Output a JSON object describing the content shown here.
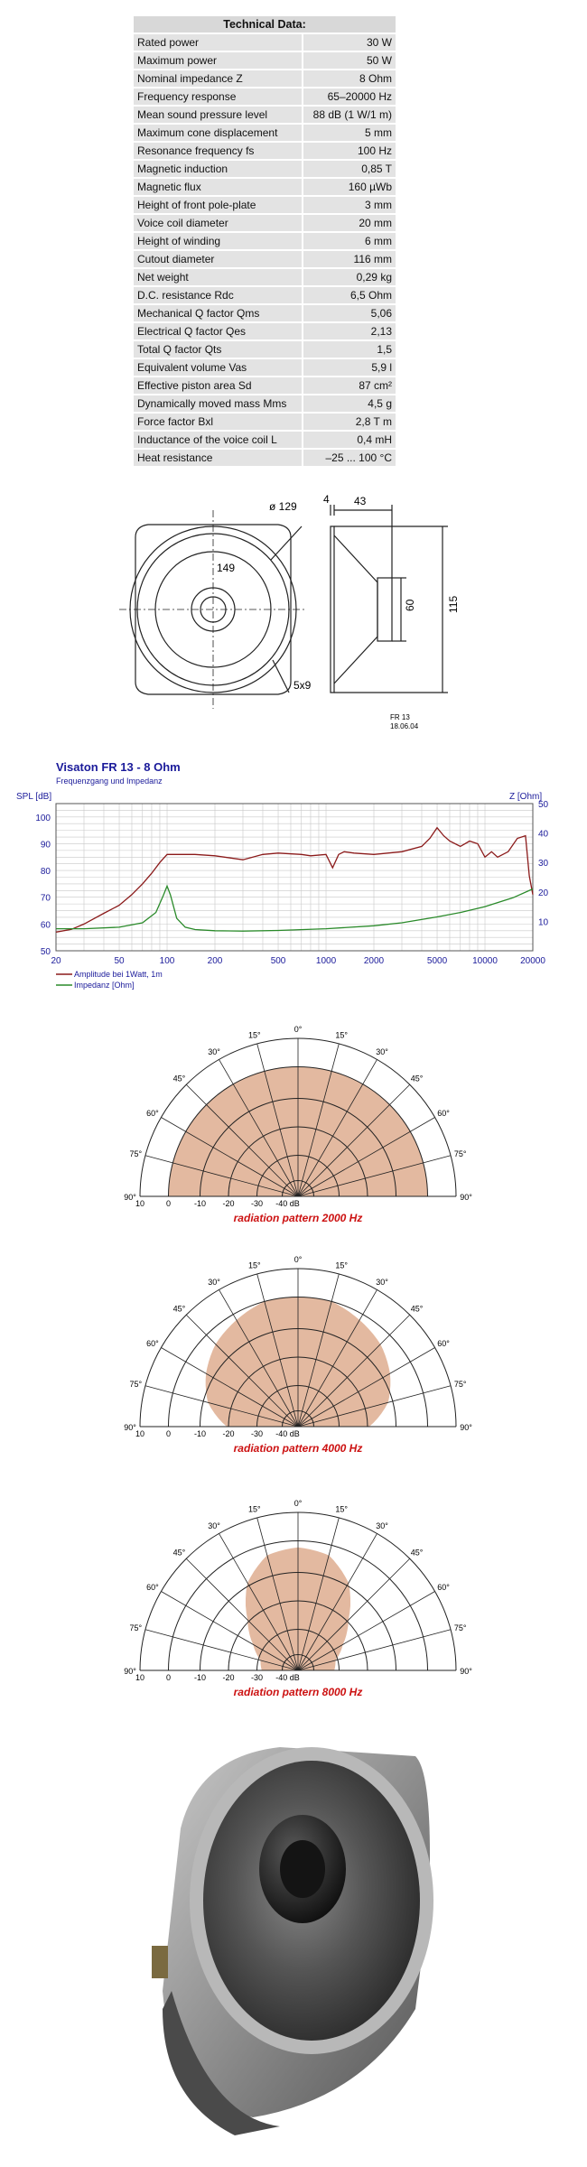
{
  "table": {
    "title": "Technical Data:",
    "rows": [
      {
        "label": "Rated power",
        "value": "30 W"
      },
      {
        "label": "Maximum power",
        "value": "50 W"
      },
      {
        "label": "Nominal impedance Z",
        "value": "8 Ohm"
      },
      {
        "label": "Frequency response",
        "value": "65–20000 Hz"
      },
      {
        "label": "Mean sound pressure level",
        "value": "88 dB (1 W/1 m)"
      },
      {
        "label": "Maximum cone displacement",
        "value": "5 mm"
      },
      {
        "label": "Resonance frequency fs",
        "value": "100 Hz"
      },
      {
        "label": "Magnetic induction",
        "value": "0,85 T"
      },
      {
        "label": "Magnetic flux",
        "value": "160 µWb"
      },
      {
        "label": "Height of front pole-plate",
        "value": "3 mm"
      },
      {
        "label": "Voice coil diameter",
        "value": "20 mm"
      },
      {
        "label": "Height of winding",
        "value": "6 mm"
      },
      {
        "label": "Cutout diameter",
        "value": "116 mm"
      },
      {
        "label": "Net weight",
        "value": "0,29 kg"
      },
      {
        "label": "D.C. resistance Rdc",
        "value": "6,5 Ohm"
      },
      {
        "label": "Mechanical Q factor Qms",
        "value": "5,06"
      },
      {
        "label": "Electrical Q factor Qes",
        "value": "2,13"
      },
      {
        "label": "Total Q factor Qts",
        "value": "1,5"
      },
      {
        "label": "Equivalent volume Vas",
        "value": "5,9 l"
      },
      {
        "label": "Effective piston area Sd",
        "value": "87 cm²"
      },
      {
        "label": "Dynamically moved mass Mms",
        "value": "4,5 g"
      },
      {
        "label": "Force factor Bxl",
        "value": "2,8 T m"
      },
      {
        "label": "Inductance of the voice coil L",
        "value": "0,4 mH"
      },
      {
        "label": "Heat resistance",
        "value": "–25 ... 100 °C"
      }
    ]
  },
  "drawing": {
    "dim_outer": "ø 129",
    "dim_inner": "149",
    "dim_holes": "5x9",
    "dim_flange": "4",
    "dim_depth": "43",
    "dim_magnet": "60",
    "dim_height": "115",
    "model_code": "FR 13",
    "date_code": "18.06.04"
  },
  "chart_data": {
    "type": "line",
    "title": "Visaton FR 13 - 8 Ohm",
    "subtitle": "Frequenzgang und Impedanz",
    "xlabel": "",
    "ylabel": "SPL [dB]",
    "y2label": "Z [Ohm]",
    "xscale": "log",
    "xlim": [
      20,
      20000
    ],
    "ylim": [
      50,
      105
    ],
    "y2lim": [
      0,
      50
    ],
    "x_ticks": [
      "20",
      "50",
      "100",
      "200",
      "500",
      "1000",
      "2000",
      "5000",
      "10000",
      "20000"
    ],
    "y_ticks": [
      "50",
      "60",
      "70",
      "80",
      "90",
      "100"
    ],
    "y2_ticks": [
      "10",
      "20",
      "30",
      "40",
      "50"
    ],
    "grid": true,
    "legend_position": "bottom-left",
    "series": [
      {
        "name": "Amplitude bei 1Watt, 1m",
        "axis": "left",
        "color": "#8b1a1a",
        "x": [
          20,
          25,
          30,
          40,
          50,
          60,
          70,
          80,
          90,
          100,
          120,
          150,
          200,
          300,
          400,
          500,
          700,
          800,
          1000,
          1100,
          1200,
          1300,
          1500,
          2000,
          3000,
          4000,
          4500,
          5000,
          5500,
          6000,
          7000,
          8000,
          9000,
          10000,
          11000,
          12000,
          14000,
          16000,
          18000,
          19000,
          20000
        ],
        "y": [
          57,
          58,
          60,
          64,
          67,
          71,
          75,
          79,
          83,
          86,
          86,
          86,
          85.5,
          84,
          86,
          86.5,
          86,
          85.5,
          86,
          81,
          86,
          87,
          86.5,
          86,
          87,
          89,
          92,
          96,
          93,
          91,
          89,
          91,
          90,
          85,
          87,
          85,
          87,
          92,
          93,
          78,
          71
        ]
      },
      {
        "name": "Impedanz [Ohm]",
        "axis": "right",
        "color": "#2a8a2a",
        "x": [
          20,
          30,
          50,
          70,
          85,
          95,
          100,
          105,
          115,
          130,
          150,
          200,
          300,
          500,
          1000,
          2000,
          3000,
          5000,
          7000,
          10000,
          15000,
          20000
        ],
        "y": [
          7.5,
          7.5,
          8,
          9.5,
          13,
          19,
          22,
          19,
          11,
          8,
          7.2,
          6.8,
          6.7,
          6.9,
          7.5,
          8.5,
          9.5,
          11.5,
          13,
          15,
          18,
          21
        ]
      }
    ]
  },
  "radiation_patterns": [
    {
      "title": "radiation pattern 2000 Hz",
      "levels": [
        1,
        1,
        1,
        1,
        1,
        1,
        1
      ]
    },
    {
      "title": "radiation pattern 4000 Hz",
      "levels": [
        1,
        1,
        0.95,
        0.9,
        0.82,
        0.72,
        0.55
      ]
    },
    {
      "title": "radiation pattern 8000 Hz",
      "levels": [
        0.95,
        0.92,
        0.78,
        0.55,
        0.4,
        0.3,
        0.28
      ]
    }
  ],
  "polar_scale": {
    "angles": [
      "0°",
      "15°",
      "30°",
      "45°",
      "60°",
      "75°",
      "90°"
    ],
    "db_labels": [
      "10",
      "0",
      "-10",
      "-20",
      "-30",
      "-40 dB"
    ]
  },
  "colors": {
    "pattern_fill": "#e3b9a0",
    "caption": "#cc1111",
    "chart_title": "#1a1a9a"
  }
}
